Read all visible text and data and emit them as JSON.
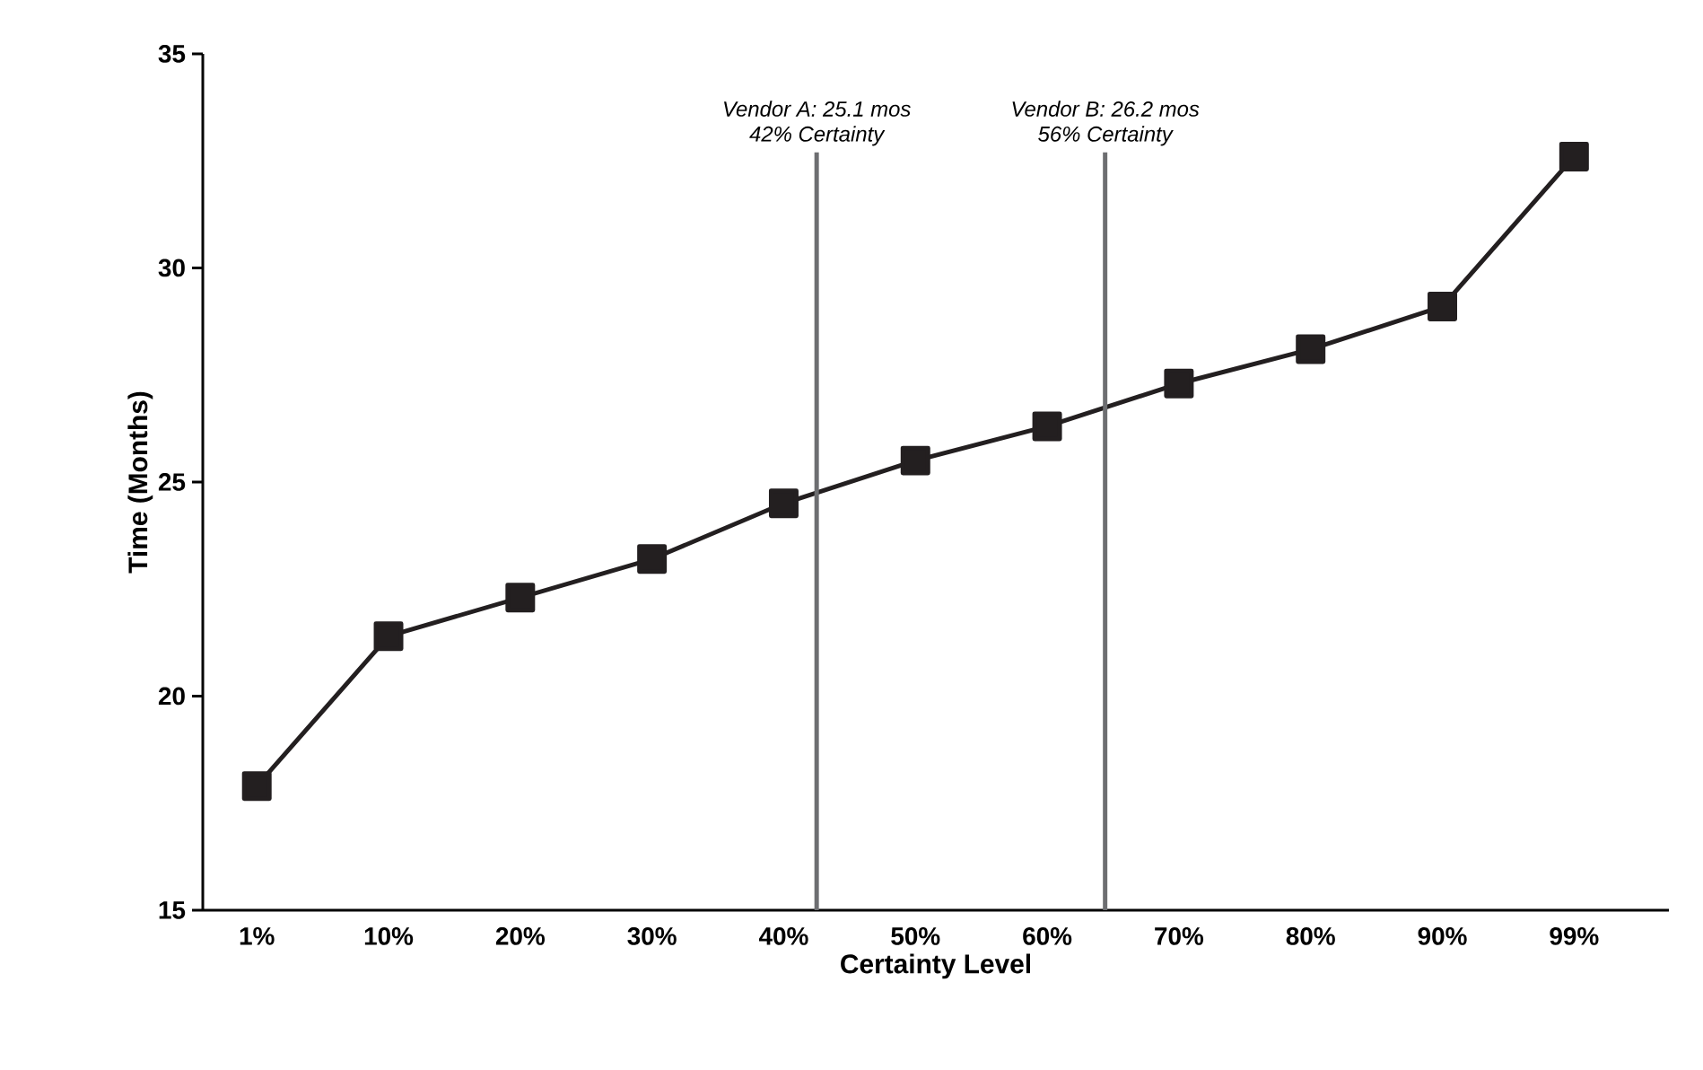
{
  "chart_data": {
    "type": "line",
    "xlabel": "Certainty Level",
    "ylabel": "Time (Months)",
    "categories": [
      "1%",
      "10%",
      "20%",
      "30%",
      "40%",
      "50%",
      "60%",
      "70%",
      "80%",
      "90%",
      "99%"
    ],
    "series": [
      {
        "color": "#231f20",
        "values": [
          17.9,
          21.4,
          22.3,
          23.2,
          24.5,
          25.5,
          26.3,
          27.3,
          28.1,
          29.1,
          32.6
        ]
      }
    ],
    "ylim": [
      15,
      35
    ],
    "yticks": [
      15,
      20,
      25,
      30,
      35
    ],
    "marker": "square",
    "line_style": "solid",
    "annotations": [
      "Vendor A: 25.1 mos",
      "42% Certainty",
      "Vendor B: 26.2 mos",
      "56% Certainty"
    ]
  }
}
